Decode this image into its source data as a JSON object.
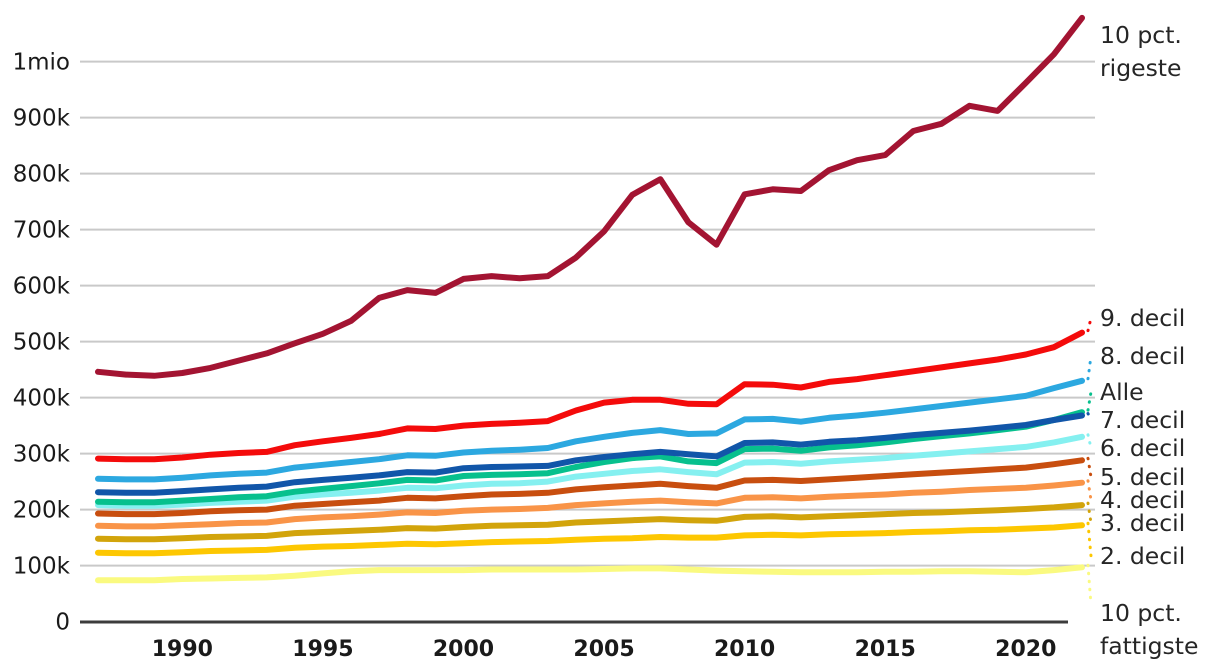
{
  "chart_data": {
    "type": "line",
    "title": "",
    "legend_position": "right",
    "grid": true,
    "x": [
      1987,
      1988,
      1989,
      1990,
      1991,
      1992,
      1993,
      1994,
      1995,
      1996,
      1997,
      1998,
      1999,
      2000,
      2001,
      2002,
      2003,
      2004,
      2005,
      2006,
      2007,
      2008,
      2009,
      2010,
      2011,
      2012,
      2013,
      2014,
      2015,
      2016,
      2017,
      2018,
      2019,
      2020,
      2021,
      2022
    ],
    "x_ticks": [
      {
        "year": 1990,
        "label": "1990"
      },
      {
        "year": 1995,
        "label": "1995"
      },
      {
        "year": 2000,
        "label": "2000"
      },
      {
        "year": 2005,
        "label": "2005"
      },
      {
        "year": 2010,
        "label": "2010"
      },
      {
        "year": 2015,
        "label": "2015"
      },
      {
        "year": 2020,
        "label": "2020"
      }
    ],
    "y_ticks": [
      {
        "value": 0,
        "label": "0"
      },
      {
        "value": 100,
        "label": "100k"
      },
      {
        "value": 200,
        "label": "200k"
      },
      {
        "value": 300,
        "label": "300k"
      },
      {
        "value": 400,
        "label": "400k"
      },
      {
        "value": 500,
        "label": "500k"
      },
      {
        "value": 600,
        "label": "600k"
      },
      {
        "value": 700,
        "label": "700k"
      },
      {
        "value": 800,
        "label": "800k"
      },
      {
        "value": 900,
        "label": "900k"
      },
      {
        "value": 1000,
        "label": "1mio"
      }
    ],
    "ylim": [
      0,
      1100
    ],
    "values_in": "thousands",
    "series": [
      {
        "id": "fattigste",
        "label": "10 pct. fattigste",
        "label_lines": [
          "10 pct.",
          "fattigste"
        ],
        "color": "#fafa80",
        "label_y": 613,
        "values": [
          74,
          74,
          74,
          76,
          77,
          78,
          79,
          82,
          86,
          90,
          92,
          92,
          92,
          92,
          93,
          93,
          93,
          93,
          94,
          95,
          95,
          93,
          91,
          90,
          89,
          88,
          88,
          88,
          89,
          89,
          90,
          90,
          89,
          88,
          92,
          97
        ]
      },
      {
        "id": "decil2",
        "label": "2. decil",
        "label_lines": [
          "2. decil"
        ],
        "color": "#fdc701",
        "label_y": 556,
        "values": [
          123,
          122,
          122,
          124,
          126,
          127,
          128,
          132,
          134,
          135,
          137,
          139,
          138,
          140,
          142,
          143,
          144,
          146,
          148,
          149,
          151,
          150,
          150,
          154,
          155,
          154,
          156,
          157,
          158,
          160,
          161,
          163,
          164,
          166,
          168,
          172
        ]
      },
      {
        "id": "decil3",
        "label": "3. decil",
        "label_lines": [
          "3. decil"
        ],
        "color": "#d2a40b",
        "label_y": 523,
        "values": [
          148,
          147,
          147,
          149,
          151,
          152,
          153,
          158,
          160,
          162,
          164,
          167,
          166,
          169,
          171,
          172,
          173,
          177,
          179,
          181,
          183,
          181,
          180,
          187,
          188,
          186,
          188,
          190,
          192,
          194,
          195,
          197,
          199,
          201,
          204,
          208
        ]
      },
      {
        "id": "decil4",
        "label": "4. decil",
        "label_lines": [
          "4. decil"
        ],
        "color": "#f99448",
        "label_y": 500,
        "values": [
          171,
          170,
          170,
          172,
          174,
          176,
          177,
          183,
          186,
          188,
          191,
          195,
          194,
          198,
          200,
          201,
          203,
          208,
          211,
          214,
          216,
          213,
          211,
          221,
          222,
          220,
          223,
          225,
          227,
          230,
          232,
          235,
          237,
          239,
          243,
          248
        ]
      },
      {
        "id": "decil5",
        "label": "5. decil",
        "label_lines": [
          "5. decil"
        ],
        "color": "#c84e0f",
        "label_y": 477,
        "values": [
          193,
          192,
          192,
          194,
          197,
          199,
          200,
          207,
          210,
          213,
          216,
          221,
          220,
          224,
          227,
          228,
          230,
          236,
          240,
          243,
          246,
          242,
          239,
          252,
          253,
          251,
          254,
          257,
          260,
          263,
          266,
          269,
          272,
          275,
          281,
          288
        ]
      },
      {
        "id": "decil6",
        "label": "6. decil",
        "label_lines": [
          "6. decil"
        ],
        "color": "#85f0f0",
        "label_y": 448,
        "values": [
          208,
          207,
          207,
          209,
          212,
          214,
          216,
          223,
          227,
          230,
          234,
          239,
          238,
          243,
          246,
          247,
          250,
          259,
          264,
          269,
          272,
          267,
          263,
          284,
          285,
          282,
          286,
          289,
          292,
          296,
          300,
          304,
          308,
          312,
          320,
          330
        ]
      },
      {
        "id": "alle",
        "label": "Alle",
        "label_lines": [
          "Alle"
        ],
        "color": "#07c08d",
        "label_y": 392,
        "values": [
          214,
          213,
          213,
          216,
          219,
          222,
          224,
          232,
          237,
          242,
          247,
          253,
          252,
          260,
          262,
          263,
          265,
          276,
          285,
          292,
          295,
          286,
          283,
          308,
          309,
          305,
          311,
          315,
          320,
          326,
          331,
          336,
          342,
          348,
          360,
          374
        ]
      },
      {
        "id": "decil7",
        "label": "7. decil",
        "label_lines": [
          "7. decil"
        ],
        "color": "#1156a9",
        "label_y": 420,
        "values": [
          231,
          230,
          230,
          233,
          236,
          239,
          241,
          249,
          253,
          257,
          261,
          267,
          266,
          274,
          276,
          277,
          278,
          288,
          294,
          299,
          303,
          299,
          295,
          319,
          320,
          316,
          321,
          324,
          328,
          333,
          337,
          341,
          346,
          351,
          360,
          368
        ]
      },
      {
        "id": "decil8",
        "label": "8. decil",
        "label_lines": [
          "8. decil"
        ],
        "color": "#2ca8e0",
        "label_y": 356,
        "values": [
          255,
          254,
          254,
          257,
          261,
          264,
          266,
          275,
          280,
          285,
          290,
          297,
          296,
          302,
          305,
          307,
          310,
          322,
          330,
          337,
          342,
          335,
          336,
          361,
          362,
          357,
          364,
          368,
          373,
          379,
          385,
          391,
          397,
          403,
          417,
          430
        ]
      },
      {
        "id": "decil9",
        "label": "9. decil",
        "label_lines": [
          "9. decil"
        ],
        "color": "#f40b0b",
        "label_y": 318,
        "values": [
          291,
          290,
          290,
          293,
          298,
          301,
          303,
          315,
          322,
          328,
          335,
          345,
          344,
          350,
          353,
          355,
          358,
          377,
          391,
          396,
          396,
          389,
          388,
          424,
          423,
          418,
          428,
          433,
          440,
          447,
          454,
          461,
          468,
          477,
          490,
          516
        ]
      },
      {
        "id": "rigeste",
        "label": "10 pct. rigeste",
        "label_lines": [
          "10 pct.",
          "rigeste"
        ],
        "color": "#a31432",
        "label_y": 35,
        "leader": false,
        "values": [
          446,
          441,
          439,
          444,
          453,
          466,
          479,
          497,
          514,
          537,
          578,
          592,
          587,
          612,
          617,
          613,
          617,
          650,
          697,
          762,
          790,
          713,
          673,
          763,
          772,
          769,
          806,
          824,
          833,
          876,
          889,
          921,
          912,
          962,
          1013,
          1078
        ]
      }
    ],
    "colors": {
      "grid": "#c9c9c9",
      "axis": "#3c3c3c",
      "text": "#1a1a1a"
    }
  }
}
